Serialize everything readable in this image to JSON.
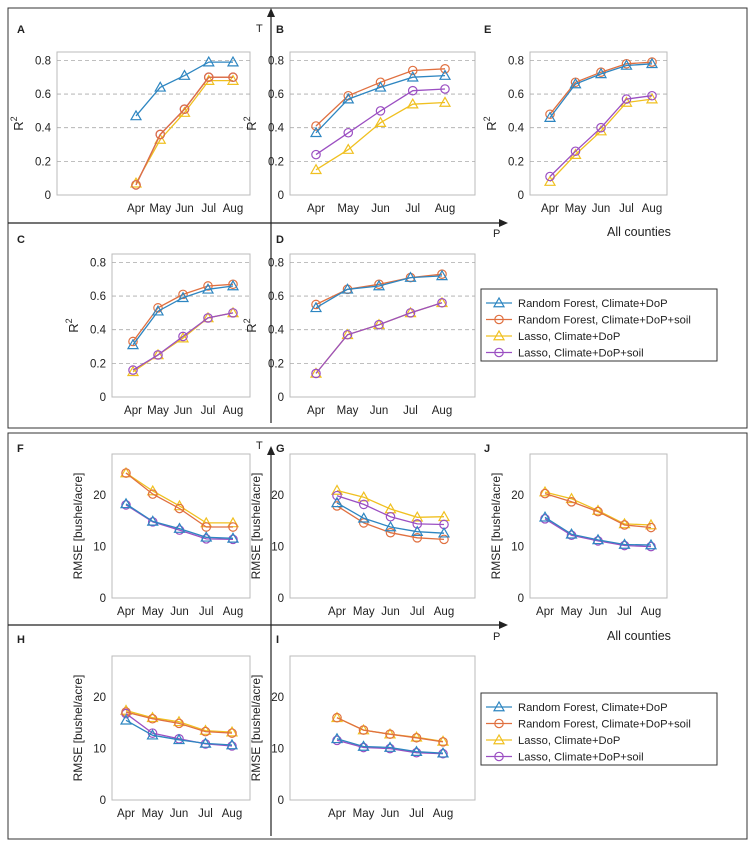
{
  "months": [
    "Apr",
    "May",
    "Jun",
    "Jul",
    "Aug"
  ],
  "axis_letters": {
    "t": "T",
    "p": "P"
  },
  "all_counties_label": "All counties",
  "r2_ylabel": "R",
  "r2_ylabel_sup": "2",
  "rmse_ylabel": "RMSE [bushel/acre]",
  "colors": {
    "Random Forest, Climate+DoP": "#2e86c1",
    "Random Forest, Climate+DoP+soil": "#e07040",
    "Lasso, Climate+DoP": "#f0c020",
    "Lasso, Climate+DoP+soil": "#9b4fc2"
  },
  "markers": {
    "Random Forest, Climate+DoP": "triangle",
    "Random Forest, Climate+DoP+soil": "circle",
    "Lasso, Climate+DoP": "triangle",
    "Lasso, Climate+DoP+soil": "circle"
  },
  "legend_entries": [
    "Random Forest, Climate+DoP",
    "Random Forest, Climate+DoP+soil",
    "Lasso, Climate+DoP",
    "Lasso, Climate+DoP+soil"
  ],
  "chart_data": [
    {
      "panel": "A",
      "type": "line",
      "metric": "R2",
      "x": [
        "Apr",
        "May",
        "Jun",
        "Jul",
        "Aug"
      ],
      "ylim": [
        0,
        0.85
      ],
      "yticks": [
        0,
        0.2,
        0.4,
        0.6,
        0.8
      ],
      "grid": true,
      "series": [
        {
          "name": "Random Forest, Climate+DoP",
          "values": [
            0.47,
            0.64,
            0.71,
            0.79,
            0.79
          ]
        },
        {
          "name": "Random Forest, Climate+DoP+soil",
          "values": [
            0.06,
            0.36,
            0.51,
            0.7,
            0.7
          ]
        },
        {
          "name": "Lasso, Climate+DoP",
          "values": [
            0.07,
            0.33,
            0.49,
            0.68,
            0.68
          ]
        },
        {
          "name": "Lasso, Climate+DoP+soil",
          "values": [
            0.06,
            0.36,
            0.51,
            0.7,
            0.7
          ]
        }
      ]
    },
    {
      "panel": "B",
      "type": "line",
      "metric": "R2",
      "x": [
        "Apr",
        "May",
        "Jun",
        "Jul",
        "Aug"
      ],
      "ylim": [
        0,
        0.85
      ],
      "yticks": [
        0,
        0.2,
        0.4,
        0.6,
        0.8
      ],
      "grid": true,
      "series": [
        {
          "name": "Random Forest, Climate+DoP",
          "values": [
            0.37,
            0.57,
            0.64,
            0.7,
            0.71
          ]
        },
        {
          "name": "Random Forest, Climate+DoP+soil",
          "values": [
            0.41,
            0.59,
            0.67,
            0.74,
            0.75
          ]
        },
        {
          "name": "Lasso, Climate+DoP",
          "values": [
            0.15,
            0.27,
            0.43,
            0.54,
            0.55
          ]
        },
        {
          "name": "Lasso, Climate+DoP+soil",
          "values": [
            0.24,
            0.37,
            0.5,
            0.62,
            0.63
          ]
        }
      ]
    },
    {
      "panel": "E",
      "type": "line",
      "metric": "R2",
      "x": [
        "Apr",
        "May",
        "Jun",
        "Jul",
        "Aug"
      ],
      "ylim": [
        0,
        0.85
      ],
      "yticks": [
        0,
        0.2,
        0.4,
        0.6,
        0.8
      ],
      "grid": true,
      "series": [
        {
          "name": "Random Forest, Climate+DoP",
          "values": [
            0.46,
            0.66,
            0.72,
            0.77,
            0.78
          ]
        },
        {
          "name": "Random Forest, Climate+DoP+soil",
          "values": [
            0.48,
            0.67,
            0.73,
            0.78,
            0.79
          ]
        },
        {
          "name": "Lasso, Climate+DoP",
          "values": [
            0.08,
            0.24,
            0.38,
            0.55,
            0.57
          ]
        },
        {
          "name": "Lasso, Climate+DoP+soil",
          "values": [
            0.11,
            0.26,
            0.4,
            0.57,
            0.59
          ]
        }
      ]
    },
    {
      "panel": "C",
      "type": "line",
      "metric": "R2",
      "x": [
        "Apr",
        "May",
        "Jun",
        "Jul",
        "Aug"
      ],
      "ylim": [
        0,
        0.85
      ],
      "yticks": [
        0,
        0.2,
        0.4,
        0.6,
        0.8
      ],
      "grid": true,
      "series": [
        {
          "name": "Random Forest, Climate+DoP",
          "values": [
            0.31,
            0.51,
            0.59,
            0.64,
            0.66
          ]
        },
        {
          "name": "Random Forest, Climate+DoP+soil",
          "values": [
            0.33,
            0.53,
            0.61,
            0.66,
            0.67
          ]
        },
        {
          "name": "Lasso, Climate+DoP",
          "values": [
            0.15,
            0.25,
            0.35,
            0.47,
            0.5
          ]
        },
        {
          "name": "Lasso, Climate+DoP+soil",
          "values": [
            0.16,
            0.25,
            0.36,
            0.47,
            0.5
          ]
        }
      ]
    },
    {
      "panel": "D",
      "type": "line",
      "metric": "R2",
      "x": [
        "Apr",
        "May",
        "Jun",
        "Jul",
        "Aug"
      ],
      "ylim": [
        0,
        0.85
      ],
      "yticks": [
        0,
        0.2,
        0.4,
        0.6,
        0.8
      ],
      "grid": true,
      "series": [
        {
          "name": "Random Forest, Climate+DoP",
          "values": [
            0.53,
            0.64,
            0.66,
            0.71,
            0.72
          ]
        },
        {
          "name": "Random Forest, Climate+DoP+soil",
          "values": [
            0.55,
            0.64,
            0.67,
            0.71,
            0.73
          ]
        },
        {
          "name": "Lasso, Climate+DoP",
          "values": [
            0.14,
            0.37,
            0.43,
            0.5,
            0.56
          ]
        },
        {
          "name": "Lasso, Climate+DoP+soil",
          "values": [
            0.14,
            0.37,
            0.43,
            0.5,
            0.56
          ]
        }
      ]
    },
    {
      "panel": "F",
      "type": "line",
      "metric": "RMSE",
      "x": [
        "Apr",
        "May",
        "Jun",
        "Jul",
        "Aug"
      ],
      "ylim": [
        0,
        28
      ],
      "yticks": [
        0,
        10,
        20
      ],
      "grid": false,
      "series": [
        {
          "name": "Random Forest, Climate+DoP",
          "values": [
            18.3,
            14.9,
            13.5,
            11.8,
            11.6
          ]
        },
        {
          "name": "Random Forest, Climate+DoP+soil",
          "values": [
            24.3,
            20.2,
            17.4,
            13.8,
            13.8
          ]
        },
        {
          "name": "Lasso, Climate+DoP",
          "values": [
            24.3,
            20.8,
            17.9,
            14.6,
            14.6
          ]
        },
        {
          "name": "Lasso, Climate+DoP+soil",
          "values": [
            18.1,
            14.8,
            13.2,
            11.5,
            11.4
          ]
        }
      ]
    },
    {
      "panel": "G",
      "type": "line",
      "metric": "RMSE",
      "x": [
        "Apr",
        "May",
        "Jun",
        "Jul",
        "Aug"
      ],
      "ylim": [
        0,
        28
      ],
      "yticks": [
        0,
        10,
        20
      ],
      "grid": false,
      "series": [
        {
          "name": "Random Forest, Climate+DoP",
          "values": [
            18.5,
            15.5,
            13.8,
            12.9,
            12.6
          ]
        },
        {
          "name": "Random Forest, Climate+DoP+soil",
          "values": [
            17.9,
            14.6,
            12.7,
            11.7,
            11.4
          ]
        },
        {
          "name": "Lasso, Climate+DoP",
          "values": [
            20.9,
            19.6,
            17.3,
            15.7,
            15.8
          ]
        },
        {
          "name": "Lasso, Climate+DoP+soil",
          "values": [
            19.9,
            18.2,
            15.8,
            14.4,
            14.3
          ]
        }
      ]
    },
    {
      "panel": "J",
      "type": "line",
      "metric": "RMSE",
      "x": [
        "Apr",
        "May",
        "Jun",
        "Jul",
        "Aug"
      ],
      "ylim": [
        0,
        28
      ],
      "yticks": [
        0,
        10,
        20
      ],
      "grid": false,
      "series": [
        {
          "name": "Random Forest, Climate+DoP",
          "values": [
            15.7,
            12.4,
            11.3,
            10.4,
            10.3
          ]
        },
        {
          "name": "Random Forest, Climate+DoP+soil",
          "values": [
            20.3,
            18.7,
            16.8,
            14.2,
            13.7
          ]
        },
        {
          "name": "Lasso, Climate+DoP",
          "values": [
            20.6,
            19.3,
            17.0,
            14.4,
            14.2
          ]
        },
        {
          "name": "Lasso, Climate+DoP+soil",
          "values": [
            15.4,
            12.2,
            11.1,
            10.2,
            10.0
          ]
        }
      ]
    },
    {
      "panel": "H",
      "type": "line",
      "metric": "RMSE",
      "x": [
        "Apr",
        "May",
        "Jun",
        "Jul",
        "Aug"
      ],
      "ylim": [
        0,
        28
      ],
      "yticks": [
        0,
        10,
        20
      ],
      "grid": false,
      "series": [
        {
          "name": "Random Forest, Climate+DoP",
          "values": [
            15.5,
            12.6,
            11.7,
            11.0,
            10.7
          ]
        },
        {
          "name": "Random Forest, Climate+DoP+soil",
          "values": [
            17.1,
            15.8,
            14.9,
            13.3,
            13.0
          ]
        },
        {
          "name": "Lasso, Climate+DoP",
          "values": [
            17.4,
            16.0,
            15.2,
            13.5,
            13.2
          ]
        },
        {
          "name": "Lasso, Climate+DoP+soil",
          "values": [
            16.8,
            13.0,
            11.9,
            10.9,
            10.5
          ]
        }
      ]
    },
    {
      "panel": "I",
      "type": "line",
      "metric": "RMSE",
      "x": [
        "Apr",
        "May",
        "Jun",
        "Jul",
        "Aug"
      ],
      "ylim": [
        0,
        28
      ],
      "yticks": [
        0,
        10,
        20
      ],
      "grid": false,
      "series": [
        {
          "name": "Random Forest, Climate+DoP",
          "values": [
            11.9,
            10.4,
            10.2,
            9.4,
            9.1
          ]
        },
        {
          "name": "Random Forest, Climate+DoP+soil",
          "values": [
            16.0,
            13.6,
            12.8,
            12.1,
            11.3
          ]
        },
        {
          "name": "Lasso, Climate+DoP",
          "values": [
            16.0,
            13.6,
            12.8,
            12.2,
            11.4
          ]
        },
        {
          "name": "Lasso, Climate+DoP+soil",
          "values": [
            11.6,
            10.2,
            10.0,
            9.2,
            9.0
          ]
        }
      ]
    }
  ]
}
